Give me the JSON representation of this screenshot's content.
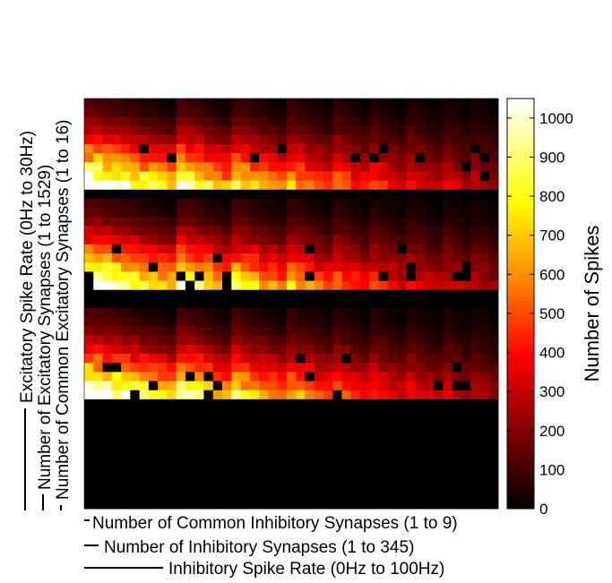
{
  "chart_data": {
    "type": "heatmap",
    "xlabels": [
      "Number of Common Inhibitory Synapses (1 to 9)",
      "Number of Inhibitory Synapses (1 to 345)",
      "Inhibitory Spike Rate (0Hz to 100Hz)"
    ],
    "ylabels": [
      "Excitatory Spike Rate (0Hz to 30Hz)",
      "Number of Excitatory Synapses (1 to 1529)",
      "Number of Common Excitatory Synapses (1 to 16)"
    ],
    "colorbar": {
      "label": "Number of Spikes",
      "min": 0,
      "max": 1050,
      "ticks": [
        0,
        100,
        200,
        300,
        400,
        500,
        600,
        700,
        800,
        900,
        1000
      ],
      "colormap": "hot",
      "colors": [
        "#000000",
        "#8b0000",
        "#ff0000",
        "#ff8000",
        "#ffff00",
        "#ffffff"
      ]
    },
    "grid_size": {
      "columns": 45,
      "rows": 45
    },
    "blocks": [
      {
        "rows_from": 0,
        "rows_to": 9,
        "peak": 1040
      },
      {
        "rows_from": 11,
        "rows_to": 20,
        "peak": 1040
      },
      {
        "rows_from": 23,
        "rows_to": 32,
        "peak": 1040
      },
      {
        "rows_from": 33,
        "rows_to": 44,
        "peak": 0
      }
    ],
    "inhibitory_groups": [
      {
        "columns_from": 0,
        "columns_to": 10,
        "level": 1.0
      },
      {
        "columns_from": 10,
        "columns_to": 16,
        "level": 0.85
      },
      {
        "columns_from": 16,
        "columns_to": 22,
        "level": 0.72
      },
      {
        "columns_from": 22,
        "columns_to": 27,
        "level": 0.6
      },
      {
        "columns_from": 27,
        "columns_to": 31,
        "level": 0.5
      },
      {
        "columns_from": 31,
        "columns_to": 35,
        "level": 0.42
      },
      {
        "columns_from": 35,
        "columns_to": 39,
        "level": 0.36
      },
      {
        "columns_from": 39,
        "columns_to": 42,
        "level": 0.31
      },
      {
        "columns_from": 42,
        "columns_to": 45,
        "level": 0.27
      }
    ],
    "grid": false
  }
}
